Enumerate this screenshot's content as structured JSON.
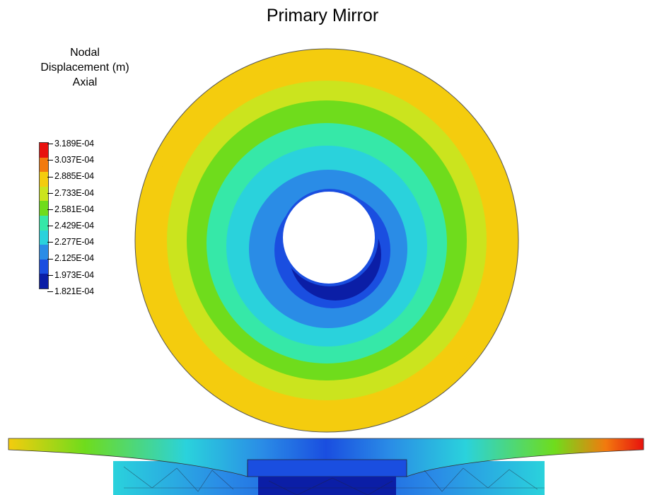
{
  "title": "Primary Mirror",
  "legend": {
    "title_lines": [
      "Nodal",
      "Displacement (m)",
      "Axial"
    ],
    "ticks": [
      "3.189E-04",
      "3.037E-04",
      "2.885E-04",
      "2.733E-04",
      "2.581E-04",
      "2.429E-04",
      "2.277E-04",
      "2.125E-04",
      "1.973E-04",
      "1.821E-04"
    ],
    "colors": [
      "#e8120e",
      "#f27a0e",
      "#f4cc0e",
      "#cbe41e",
      "#6fdc1c",
      "#36e8a8",
      "#2ad2dc",
      "#2a8ce6",
      "#1a4ee0",
      "#0b1ea6"
    ]
  }
}
